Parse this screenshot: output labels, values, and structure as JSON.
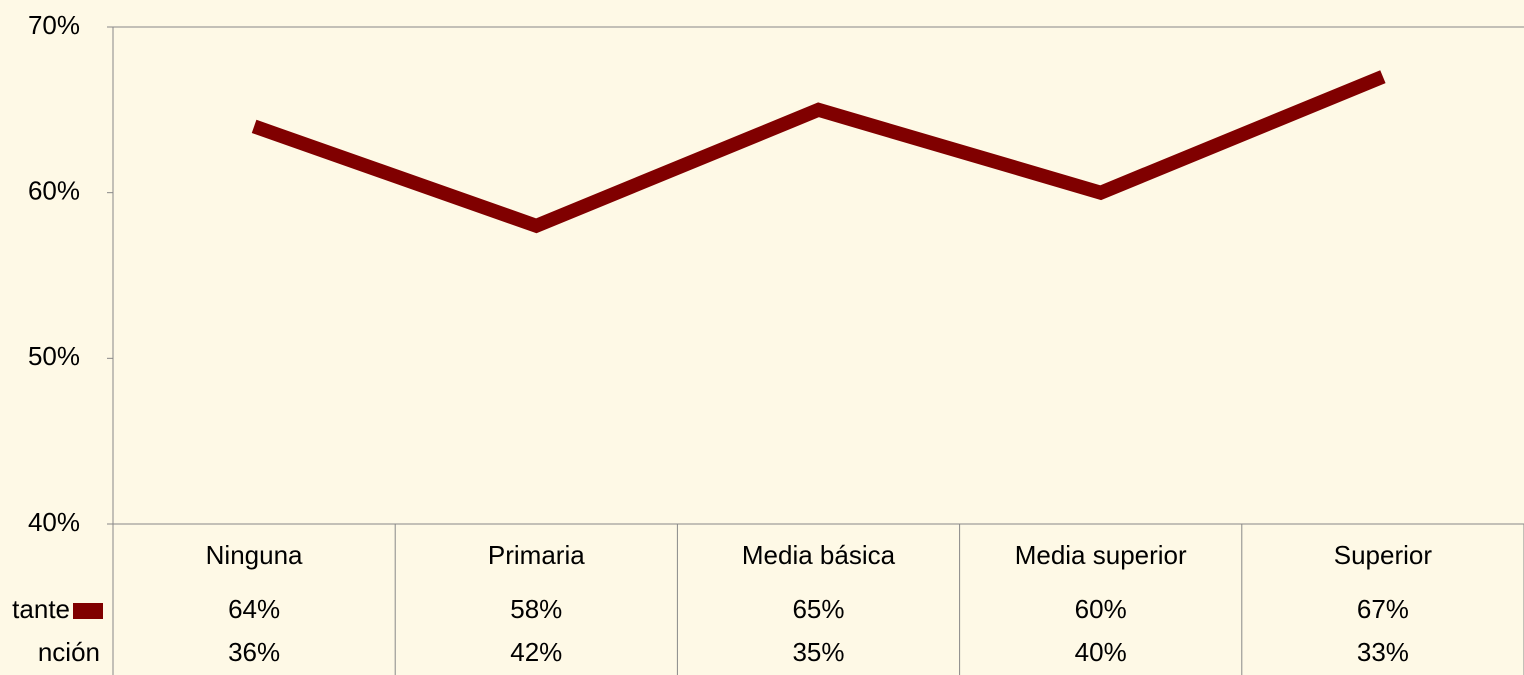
{
  "chart_data": {
    "type": "line",
    "categories": [
      "Ninguna",
      "Primaria",
      "Media básica",
      "Media superior",
      "Superior"
    ],
    "series": [
      {
        "name": "tante",
        "color": "#800000",
        "values": [
          64,
          58,
          65,
          60,
          67
        ],
        "value_labels": [
          "64%",
          "58%",
          "65%",
          "60%",
          "67%"
        ]
      },
      {
        "name": "nción",
        "values": [
          36,
          42,
          35,
          40,
          33
        ],
        "value_labels": [
          "36%",
          "42%",
          "35%",
          "40%",
          "33%"
        ]
      }
    ],
    "ylim": [
      40,
      70
    ],
    "yticks": [
      {
        "value": 40,
        "label": "40%"
      },
      {
        "value": 50,
        "label": "50%"
      },
      {
        "value": 60,
        "label": "60%"
      },
      {
        "value": 70,
        "label": "70%"
      }
    ],
    "grid": false
  }
}
